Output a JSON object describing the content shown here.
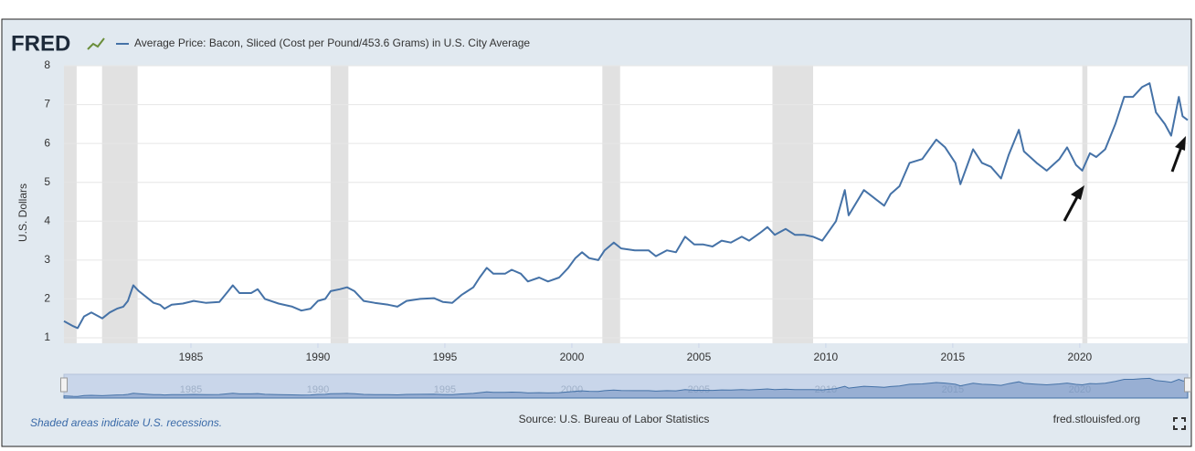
{
  "chart_data": {
    "type": "line",
    "logo": "FRED",
    "y_label": "U.S. Dollars",
    "footnote": "Shaded areas indicate U.S. recessions.",
    "source": "Source: U.S. Bureau of Labor Statistics",
    "site": "fred.stlouisfed.org",
    "xlim": [
      1980,
      2024.25
    ],
    "xticks": [
      1985,
      1990,
      1995,
      2000,
      2005,
      2010,
      2015,
      2020
    ],
    "ylim": [
      1,
      8
    ],
    "yticks": [
      1,
      2,
      3,
      4,
      5,
      6,
      7,
      8
    ],
    "grid": true,
    "recessions": [
      [
        1980.0,
        1980.5
      ],
      [
        1981.5,
        1982.9
      ],
      [
        1990.5,
        1991.2
      ],
      [
        2001.2,
        2001.9
      ],
      [
        2007.9,
        2009.5
      ],
      [
        2020.1,
        2020.3
      ]
    ],
    "recession_color": "#e1e1e1",
    "x": [
      1980.0,
      1980.36,
      1980.54,
      1980.79,
      1981.08,
      1981.37,
      1981.51,
      1981.8,
      1982.09,
      1982.34,
      1982.52,
      1982.73,
      1982.95,
      1983.24,
      1983.53,
      1983.78,
      1983.96,
      1984.24,
      1984.68,
      1985.11,
      1985.58,
      1986.12,
      1986.47,
      1986.65,
      1986.91,
      1987.37,
      1987.63,
      1987.91,
      1988.45,
      1988.99,
      1989.35,
      1989.71,
      1990.0,
      1990.29,
      1990.5,
      1990.86,
      1991.15,
      1991.44,
      1991.8,
      1992.23,
      1992.77,
      1993.13,
      1993.49,
      1994.03,
      1994.57,
      1994.93,
      1995.29,
      1995.65,
      1996.12,
      1996.37,
      1996.65,
      1996.91,
      1997.37,
      1997.63,
      1997.99,
      1998.27,
      1998.71,
      1999.06,
      1999.5,
      1999.86,
      2000.14,
      2000.4,
      2000.68,
      2001.04,
      2001.29,
      2001.65,
      2001.94,
      2002.48,
      2003.02,
      2003.31,
      2003.74,
      2004.1,
      2004.46,
      2004.82,
      2005.18,
      2005.54,
      2005.9,
      2006.26,
      2006.69,
      2006.98,
      2007.41,
      2007.7,
      2007.99,
      2008.42,
      2008.78,
      2009.14,
      2009.5,
      2009.86,
      2010.4,
      2010.75,
      2010.9,
      2011.5,
      2011.8,
      2012.0,
      2012.3,
      2012.55,
      2012.9,
      2013.3,
      2013.8,
      2014.35,
      2014.7,
      2015.1,
      2015.3,
      2015.8,
      2016.15,
      2016.5,
      2016.9,
      2017.2,
      2017.6,
      2017.8,
      2018.3,
      2018.7,
      2019.2,
      2019.5,
      2019.85,
      2020.1,
      2020.4,
      2020.65,
      2021.0,
      2021.4,
      2021.75,
      2022.1,
      2022.45,
      2022.75,
      2023.0,
      2023.35,
      2023.6,
      2023.9,
      2024.05,
      2024.25
    ],
    "series": [
      {
        "name": "Average Price: Bacon, Sliced (Cost per Pound/453.6 Grams) in U.S. City Average",
        "color": "#4572a7",
        "values": [
          1.43,
          1.3,
          1.25,
          1.55,
          1.65,
          1.55,
          1.5,
          1.65,
          1.75,
          1.8,
          1.95,
          2.35,
          2.2,
          2.05,
          1.9,
          1.85,
          1.75,
          1.85,
          1.88,
          1.95,
          1.9,
          1.92,
          2.2,
          2.35,
          2.15,
          2.15,
          2.25,
          2.0,
          1.88,
          1.8,
          1.7,
          1.75,
          1.95,
          2.0,
          2.2,
          2.25,
          2.3,
          2.2,
          1.95,
          1.9,
          1.85,
          1.8,
          1.95,
          2.0,
          2.02,
          1.92,
          1.9,
          2.1,
          2.3,
          2.55,
          2.8,
          2.65,
          2.65,
          2.75,
          2.65,
          2.45,
          2.55,
          2.45,
          2.55,
          2.8,
          3.05,
          3.2,
          3.05,
          3.0,
          3.25,
          3.45,
          3.3,
          3.25,
          3.25,
          3.1,
          3.25,
          3.2,
          3.6,
          3.4,
          3.4,
          3.35,
          3.5,
          3.45,
          3.6,
          3.5,
          3.7,
          3.85,
          3.65,
          3.8,
          3.65,
          3.65,
          3.6,
          3.5,
          4.0,
          4.8,
          4.15,
          4.8,
          4.65,
          4.55,
          4.4,
          4.7,
          4.9,
          5.5,
          5.6,
          6.1,
          5.9,
          5.5,
          4.95,
          5.85,
          5.5,
          5.4,
          5.1,
          5.7,
          6.35,
          5.8,
          5.5,
          5.3,
          5.6,
          5.9,
          5.45,
          5.3,
          5.75,
          5.65,
          5.85,
          6.5,
          7.2,
          7.2,
          7.45,
          7.55,
          6.8,
          6.5,
          6.2,
          7.2,
          6.7,
          6.6
        ]
      }
    ]
  }
}
